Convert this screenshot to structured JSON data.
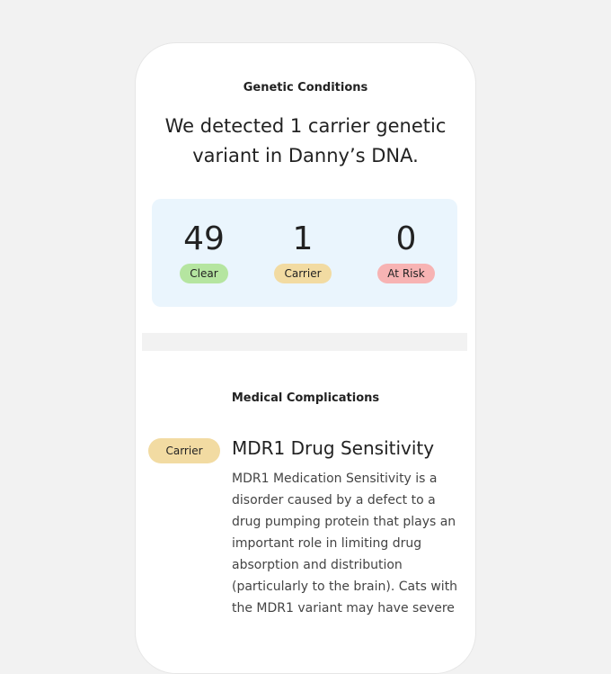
{
  "header": {
    "section": "Genetic Conditions",
    "headline_line1": "We detected 1 carrier genetic",
    "headline_line2": "variant in Danny’s DNA."
  },
  "summary": [
    {
      "count": "49",
      "label": "Clear"
    },
    {
      "count": "1",
      "label": "Carrier"
    },
    {
      "count": "0",
      "label": "At Risk"
    }
  ],
  "medical": {
    "title": "Medical Complications",
    "item": {
      "badge": "Carrier",
      "name": "MDR1 Drug Sensitivity",
      "description": [
        "MDR1 Medication Sensitivity is a",
        "disorder caused by a defect to a",
        "drug pumping protein that plays an",
        "important role in limiting drug",
        "absorption and distribution",
        "(particularly to the brain). Cats with",
        "the MDR1 variant may have severe"
      ]
    }
  }
}
